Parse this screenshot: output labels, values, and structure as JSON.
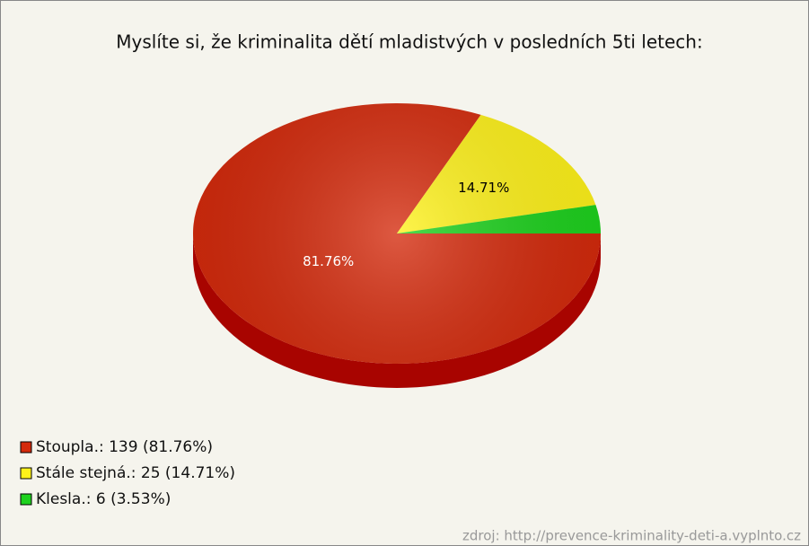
{
  "chart_data": {
    "type": "pie3d",
    "title": "Myslíte si, že kriminalita dětí mladistvých v posledních 5ti letech:",
    "categories": [
      "Stoupla.: 139 (81.76%)",
      "Stále stejná.: 25 (14.71%)",
      "Klesla.: 6 (3.53%)"
    ],
    "values": [
      81.76,
      14.71,
      3.53
    ],
    "value_labels": [
      "81.76%",
      "14.71%",
      null
    ],
    "colors": [
      "#d42a0c",
      "#fff21a",
      "#1ed21e"
    ],
    "side_colors": [
      "#a80400",
      "#c8b800",
      "#109010"
    ],
    "label_colors": [
      "#ffffff",
      "#000000",
      "#000000"
    ],
    "source": "zdroj: http://prevence-kriminality-deti-a.vyplnto.cz"
  }
}
